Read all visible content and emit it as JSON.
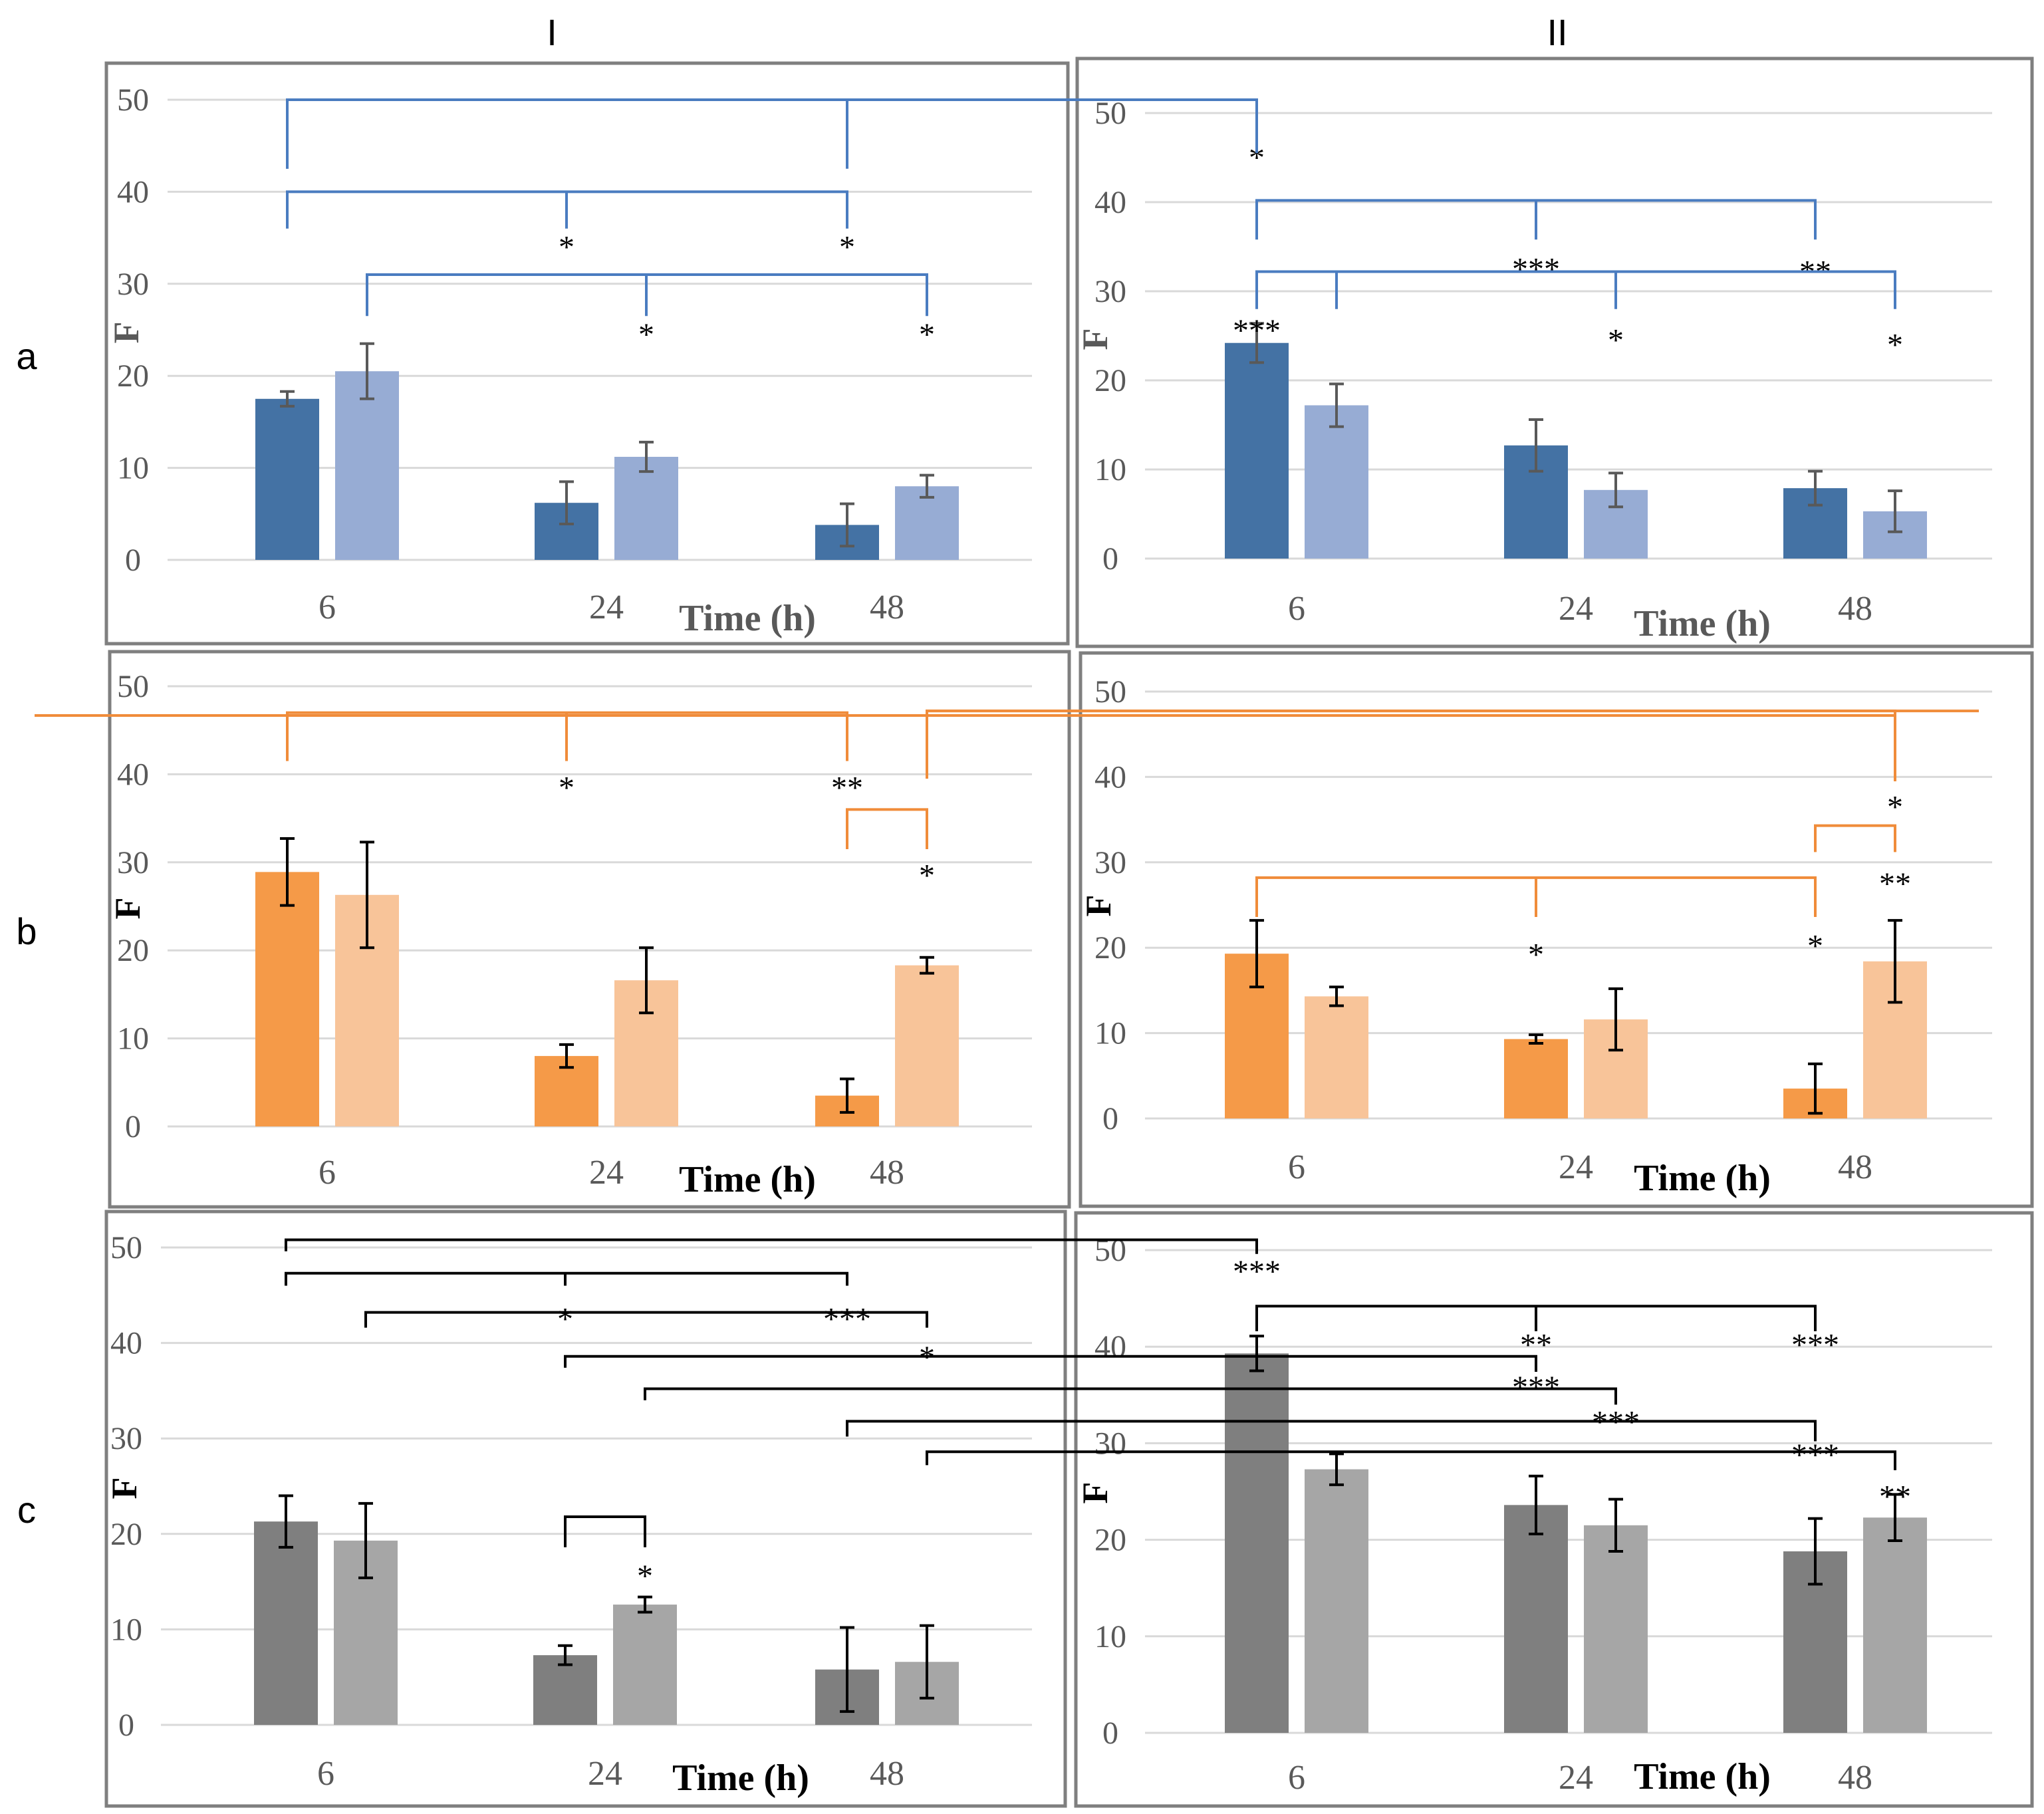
{
  "column_headers": [
    "I",
    "II"
  ],
  "row_labels": [
    "a",
    "b",
    "c"
  ],
  "colors": {
    "a": {
      "dark": "#4472a4",
      "light": "#97acd4",
      "bracket": "#4a7cc0",
      "err": "#595959",
      "xlabel": "#595959",
      "ylabel": "#595959"
    },
    "b": {
      "dark": "#f59a48",
      "light": "#f8c499",
      "bracket": "#f08c3a",
      "err": "#000000",
      "xlabel": "#000000",
      "ylabel": "#000000"
    },
    "c": {
      "dark": "#7f7f7f",
      "light": "#a6a6a6",
      "bracket": "#000000",
      "err": "#000000",
      "xlabel": "#000000",
      "ylabel": "#000000"
    }
  },
  "chart_data": [
    {
      "type": "bar",
      "row": "a",
      "col": "I",
      "categories": [
        "6",
        "24",
        "48"
      ],
      "series": [
        {
          "name": "dark",
          "values": [
            17.5,
            6.2,
            3.8
          ],
          "errors": [
            0.8,
            2.3,
            2.3
          ]
        },
        {
          "name": "light",
          "values": [
            20.5,
            11.2,
            8.0
          ],
          "errors": [
            3.0,
            1.6,
            1.2
          ]
        }
      ],
      "xlabel": "Time (h)",
      "ylabel": "F",
      "ylim": [
        0,
        50
      ],
      "yticks": [
        "0",
        "10",
        "20",
        "30",
        "40",
        "50"
      ],
      "annotations": [
        {
          "from": [
            0,
            0
          ],
          "to": [
            2,
            0
          ],
          "level": 50,
          "up": 42.5,
          "mids": [],
          "labels": [],
          "dest": "a-II"
        },
        {
          "from": [
            0,
            0
          ],
          "to": [
            2,
            0
          ],
          "level": 40,
          "up": 36,
          "mids": [
            [
              1,
              0
            ]
          ],
          "labels": [
            {
              "x": [
                1,
                0
              ],
              "y": 34,
              "t": "*"
            },
            {
              "x": [
                2,
                0
              ],
              "y": 34,
              "t": "*"
            }
          ]
        },
        {
          "from": [
            0,
            1
          ],
          "to": [
            2,
            1
          ],
          "level": 31,
          "up": 26.5,
          "mids": [
            [
              1,
              1
            ]
          ],
          "labels": [
            {
              "x": [
                1,
                1
              ],
              "y": 24.5,
              "t": "*"
            },
            {
              "x": [
                2,
                1
              ],
              "y": 24.5,
              "t": "*"
            }
          ]
        }
      ]
    },
    {
      "type": "bar",
      "row": "a",
      "col": "II",
      "categories": [
        "6",
        "24",
        "48"
      ],
      "series": [
        {
          "name": "dark",
          "values": [
            24.2,
            12.7,
            7.9
          ],
          "errors": [
            2.2,
            2.9,
            1.9
          ]
        },
        {
          "name": "light",
          "values": [
            17.2,
            7.7,
            5.3
          ],
          "errors": [
            2.4,
            1.9,
            2.3
          ]
        }
      ],
      "xlabel": "Time (h)",
      "ylabel": "F",
      "ylim": [
        0,
        50
      ],
      "yticks": [
        "0",
        "10",
        "20",
        "30",
        "40",
        "50"
      ],
      "annotations": [
        {
          "from": [
            0,
            0
          ],
          "to": [
            2,
            0
          ],
          "level": 40.2,
          "up": 35.8,
          "mids": [
            [
              1,
              0
            ]
          ],
          "labels": [
            {
              "x": [
                0,
                0
              ],
              "y": 45,
              "t": "*"
            },
            {
              "x": [
                1,
                0
              ],
              "y": 32.5,
              "t": "***"
            },
            {
              "x": [
                2,
                0
              ],
              "y": 32.2,
              "t": "**"
            }
          ]
        },
        {
          "from": [
            0,
            0
          ],
          "to": [
            2,
            1
          ],
          "level": 32.2,
          "up": 28,
          "mids": [
            [
              0,
              1
            ],
            [
              1,
              1
            ]
          ],
          "labels": [
            {
              "x": [
                0,
                0
              ],
              "y": 25.6,
              "t": "***"
            },
            {
              "x": [
                1,
                1
              ],
              "y": 24.5,
              "t": "*"
            },
            {
              "x": [
                2,
                1
              ],
              "y": 24,
              "t": "*"
            }
          ]
        }
      ]
    },
    {
      "type": "bar",
      "row": "b",
      "col": "I",
      "categories": [
        "6",
        "24",
        "48"
      ],
      "series": [
        {
          "name": "dark",
          "values": [
            28.9,
            8.0,
            3.5
          ],
          "errors": [
            3.8,
            1.3,
            1.9
          ]
        },
        {
          "name": "light",
          "values": [
            26.3,
            16.6,
            18.3
          ],
          "errors": [
            6.0,
            3.7,
            0.9
          ]
        }
      ],
      "xlabel": "Time (h)",
      "ylabel": "F",
      "ylim": [
        0,
        50
      ],
      "yticks": [
        "0",
        "10",
        "20",
        "30",
        "40",
        "50"
      ],
      "annotations": [
        {
          "from": [
            0,
            0
          ],
          "to": [
            2,
            0
          ],
          "level": 47,
          "up": 41.5,
          "mids": [
            [
              1,
              0
            ]
          ],
          "labels": [
            {
              "x": [
                1,
                0
              ],
              "y": 38.5,
              "t": "*"
            },
            {
              "x": [
                2,
                0
              ],
              "y": 38.5,
              "t": "**"
            }
          ]
        },
        {
          "from": [
            2,
            0
          ],
          "to": [
            2,
            1
          ],
          "level": 36,
          "up": 31.5,
          "mids": [],
          "labels": [
            {
              "x": [
                2,
                1
              ],
              "y": 28.5,
              "t": "*"
            }
          ]
        },
        {
          "from": [
            2,
            1
          ],
          "to": null,
          "level": 47.2,
          "up": 39.5,
          "mids": [],
          "labels": [],
          "dest": "b-II"
        }
      ]
    },
    {
      "type": "bar",
      "row": "b",
      "col": "II",
      "categories": [
        "6",
        "24",
        "48"
      ],
      "series": [
        {
          "name": "dark",
          "values": [
            19.3,
            9.3,
            3.5
          ],
          "errors": [
            3.9,
            0.5,
            2.9
          ]
        },
        {
          "name": "light",
          "values": [
            14.3,
            11.6,
            18.4
          ],
          "errors": [
            1.1,
            3.6,
            4.8
          ]
        }
      ],
      "xlabel": "Time (h)",
      "ylabel": "F",
      "ylim": [
        0,
        50
      ],
      "yticks": [
        "0",
        "10",
        "20",
        "30",
        "40",
        "50"
      ],
      "annotations": [
        {
          "from": null,
          "to": [
            2,
            1
          ],
          "level": 47.2,
          "up": 39.5,
          "mids": [],
          "labels": [
            {
              "x": [
                2,
                1
              ],
              "y": 36.5,
              "t": "*"
            }
          ],
          "dest": "b-I"
        },
        {
          "from": [
            2,
            0
          ],
          "to": [
            2,
            1
          ],
          "level": 34.3,
          "up": 31.2,
          "mids": [],
          "labels": [
            {
              "x": [
                2,
                1
              ],
              "y": 27.5,
              "t": "**"
            }
          ]
        },
        {
          "from": [
            0,
            0
          ],
          "to": [
            2,
            0
          ],
          "level": 28.2,
          "up": 23.6,
          "mids": [
            [
              1,
              0
            ]
          ],
          "labels": [
            {
              "x": [
                1,
                0
              ],
              "y": 19.2,
              "t": "*"
            },
            {
              "x": [
                2,
                0
              ],
              "y": 20.2,
              "t": "*"
            }
          ]
        }
      ]
    },
    {
      "type": "bar",
      "row": "c",
      "col": "I",
      "categories": [
        "6",
        "24",
        "48"
      ],
      "series": [
        {
          "name": "dark",
          "values": [
            21.3,
            7.3,
            5.8
          ],
          "errors": [
            2.7,
            1.0,
            4.4
          ]
        },
        {
          "name": "light",
          "values": [
            19.3,
            12.6,
            6.6
          ],
          "errors": [
            3.9,
            0.8,
            3.8
          ]
        }
      ],
      "xlabel": "Time (h)",
      "ylabel": "F",
      "ylim": [
        0,
        50
      ],
      "yticks": [
        "0",
        "10",
        "20",
        "30",
        "40",
        "50"
      ],
      "annotations": [
        {
          "from": [
            1,
            0
          ],
          "to": [
            1,
            1
          ],
          "level": 21.8,
          "up": 18.6,
          "mids": [],
          "labels": [
            {
              "x": [
                1,
                1
              ],
              "y": 15.6,
              "t": "*"
            }
          ]
        },
        {
          "from": [
            0,
            0
          ],
          "to": [
            2,
            0
          ],
          "level": 47.3,
          "up": 46,
          "mids": [
            [
              1,
              0
            ]
          ],
          "labels": [
            {
              "x": [
                1,
                0
              ],
              "y": 42.5,
              "t": "*"
            },
            {
              "x": [
                2,
                0
              ],
              "y": 42.5,
              "t": "***"
            }
          ]
        },
        {
          "from": [
            0,
            1
          ],
          "to": [
            2,
            1
          ],
          "level": 43.2,
          "up": 41.6,
          "mids": [],
          "labels": [
            {
              "x": [
                2,
                1
              ],
              "y": 38.5,
              "t": "*"
            }
          ]
        }
      ]
    },
    {
      "type": "bar",
      "row": "c",
      "col": "II",
      "categories": [
        "6",
        "24",
        "48"
      ],
      "series": [
        {
          "name": "dark",
          "values": [
            39.3,
            23.6,
            18.8
          ],
          "errors": [
            1.8,
            3.0,
            3.4
          ]
        },
        {
          "name": "light",
          "values": [
            27.3,
            21.5,
            22.3
          ],
          "errors": [
            1.6,
            2.7,
            2.4
          ]
        }
      ],
      "xlabel": "Time (h)",
      "ylabel": "F",
      "ylim": [
        0,
        50
      ],
      "yticks": [
        "0",
        "10",
        "20",
        "30",
        "40",
        "50"
      ],
      "annotations": [
        {
          "from": [
            0,
            0
          ],
          "to": [
            2,
            0
          ],
          "level": 44.2,
          "up": 41.6,
          "mids": [
            [
              1,
              0
            ]
          ],
          "labels": [
            {
              "x": [
                0,
                0
              ],
              "y": 47.8,
              "t": "***"
            },
            {
              "x": [
                1,
                0
              ],
              "y": 40.2,
              "t": "**"
            },
            {
              "x": [
                2,
                0
              ],
              "y": 40.2,
              "t": "***"
            }
          ]
        },
        {
          "from": null,
          "to": [
            2,
            1
          ],
          "level": 29.2,
          "up": 29.2,
          "mids": [],
          "labels": [
            {
              "x": [
                2,
                1
              ],
              "y": 24.5,
              "t": "**"
            }
          ]
        }
      ]
    }
  ],
  "cross_brackets": [
    {
      "row": "c",
      "x1": [
        0,
        0,
        "I"
      ],
      "x2": [
        0,
        0,
        "II"
      ],
      "level": 50.8,
      "down": [
        49.6,
        49.6
      ],
      "labels": []
    },
    {
      "row": "c",
      "x1": [
        1,
        0,
        "I"
      ],
      "x2": [
        1,
        0,
        "II"
      ],
      "level": 38.6,
      "down": [
        37.4,
        37.4
      ],
      "labels": [
        {
          "at": [
            1,
            0,
            "II"
          ],
          "y": 35.8,
          "t": "***"
        }
      ]
    },
    {
      "row": "c",
      "x1": [
        1,
        1,
        "I"
      ],
      "x2": [
        1,
        1,
        "II"
      ],
      "level": 35.2,
      "down": [
        34.0,
        34.0
      ],
      "labels": [
        {
          "at": [
            1,
            1,
            "II"
          ],
          "y": 32.2,
          "t": "***"
        }
      ]
    },
    {
      "row": "c",
      "x1": [
        2,
        0,
        "I"
      ],
      "x2": [
        2,
        0,
        "II"
      ],
      "level": 31.8,
      "down": [
        30.2,
        30.2
      ],
      "labels": [
        {
          "at": [
            2,
            0,
            "II"
          ],
          "y": 28.8,
          "t": "***"
        }
      ]
    },
    {
      "row": "c",
      "x1": [
        2,
        1,
        "I"
      ],
      "x2": [
        2,
        1,
        "II"
      ],
      "level": 28.6,
      "down": [
        27.2,
        27.2
      ],
      "labels": []
    }
  ]
}
